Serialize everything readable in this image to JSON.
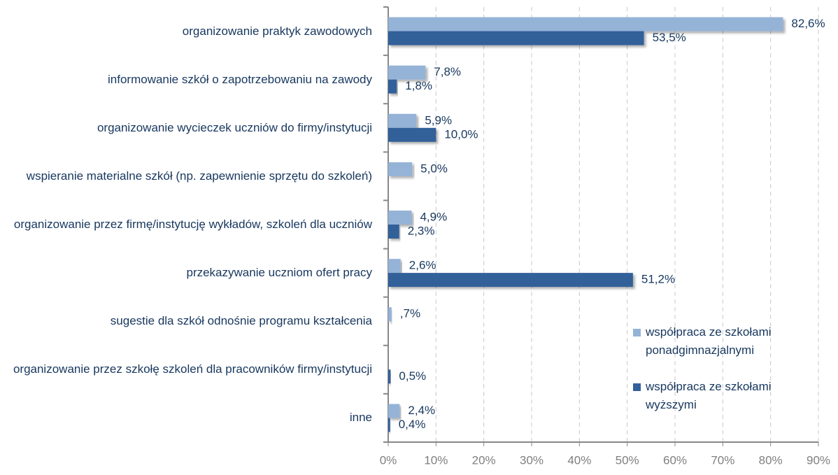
{
  "chart_data": {
    "type": "bar",
    "orientation": "horizontal",
    "categories": [
      "organizowanie praktyk zawodowych",
      "informowanie szkół o zapotrzebowaniu na zawody",
      "organizowanie wycieczek uczniów do firmy/instytucji",
      "wspieranie materialne szkół (np. zapewnienie sprzętu do szkoleń)",
      "organizowanie przez firmę/instytucję wykładów, szkoleń dla uczniów",
      "przekazywanie uczniom ofert pracy",
      "sugestie dla szkół odnośnie programu kształcenia",
      "organizowanie przez szkołę szkoleń dla pracowników firmy/instytucji",
      "inne"
    ],
    "series": [
      {
        "name": "współpraca ze szkołami ponadgimnazjalnymi",
        "color": "#95b3d7",
        "values": [
          82.6,
          7.8,
          5.9,
          5.0,
          4.9,
          2.6,
          0.7,
          null,
          2.4
        ],
        "value_labels": [
          "82,6%",
          "7,8%",
          "5,9%",
          "5,0%",
          "4,9%",
          "2,6%",
          ",7%",
          null,
          "2,4%"
        ]
      },
      {
        "name": "współpraca ze szkołami wyższymi",
        "color": "#336199",
        "values": [
          53.5,
          1.8,
          10.0,
          null,
          2.3,
          51.2,
          null,
          0.5,
          0.4
        ],
        "value_labels": [
          "53,5%",
          "1,8%",
          "10,0%",
          null,
          "2,3%",
          "51,2%",
          null,
          "0,5%",
          "0,4%"
        ]
      }
    ],
    "xlim": [
      0,
      90
    ],
    "xticks": [
      {
        "value": 0,
        "label": "0%"
      },
      {
        "value": 10,
        "label": "10%"
      },
      {
        "value": 20,
        "label": "20%"
      },
      {
        "value": 30,
        "label": "30%"
      },
      {
        "value": 40,
        "label": "40%"
      },
      {
        "value": 50,
        "label": "50%"
      },
      {
        "value": 60,
        "label": "60%"
      },
      {
        "value": 70,
        "label": "70%"
      },
      {
        "value": 80,
        "label": "80%"
      },
      {
        "value": 90,
        "label": "90%"
      }
    ],
    "grid": true,
    "legend": "right"
  }
}
